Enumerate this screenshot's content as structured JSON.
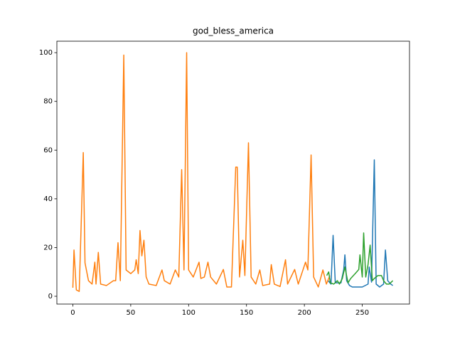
{
  "chart_data": {
    "type": "line",
    "title": "god_bless_america",
    "xlim": [
      -13.8,
      290.8
    ],
    "ylim": [
      -3.2,
      104.7
    ],
    "xticks": [
      0,
      50,
      100,
      150,
      200,
      250
    ],
    "yticks": [
      0,
      20,
      40,
      60,
      80,
      100
    ],
    "grid": false,
    "series": [
      {
        "color": "#1f77b4",
        "x": [
          220.5,
          223,
          224.8,
          226.7,
          229,
          231.6,
          234,
          235,
          236.5,
          239,
          241.4,
          245,
          250,
          255,
          256,
          258,
          260.4,
          262,
          265,
          268.4,
          270,
          272,
          274.6,
          276.4
        ],
        "values": [
          6.4,
          5,
          25,
          5.5,
          5.5,
          5.5,
          11,
          17,
          6.4,
          4.4,
          3.8,
          3.8,
          3.8,
          5,
          12,
          5.8,
          56,
          5,
          3.8,
          5,
          19,
          6.4,
          5,
          4.4
        ]
      },
      {
        "color": "#ff7f0e",
        "x": [
          0,
          1,
          3,
          5.5,
          9,
          10.5,
          13.5,
          16.6,
          19,
          20,
          22,
          24,
          29,
          35,
          37,
          39,
          41,
          44,
          46,
          50,
          53.5,
          54.7,
          56.5,
          58,
          59.6,
          61.4,
          63.3,
          65.7,
          72,
          77,
          79,
          84,
          88.5,
          91.5,
          94,
          96,
          98.3,
          100,
          104,
          109,
          110.6,
          113.6,
          116.7,
          119,
          124,
          130,
          133,
          137,
          140.7,
          142,
          144,
          146.8,
          148.6,
          151.7,
          154,
          158,
          161.5,
          164,
          170,
          171.4,
          174,
          179,
          183.7,
          185.5,
          191.6,
          194.7,
          201,
          203,
          205.8,
          208,
          212,
          216,
          219,
          222
        ],
        "values": [
          3.5,
          19,
          2.6,
          2,
          59,
          13.7,
          6.4,
          5,
          14,
          5,
          18,
          5,
          4.4,
          6.4,
          6.4,
          22,
          6.4,
          99,
          10.8,
          9.3,
          10.8,
          15,
          9.3,
          27,
          16.6,
          23,
          8,
          5,
          4.4,
          10.8,
          6.4,
          5,
          10.8,
          7.9,
          52,
          10.8,
          100,
          10.8,
          7.9,
          14,
          7.3,
          7.9,
          14,
          7.9,
          5,
          11,
          3.8,
          3.8,
          53,
          53,
          7.9,
          23,
          8.5,
          63,
          7.9,
          5,
          10.8,
          4.4,
          5,
          13,
          5,
          4,
          15,
          5,
          11,
          5,
          14,
          10.8,
          58,
          7.9,
          3.8,
          10.8,
          5,
          8.5
        ]
      },
      {
        "color": "#2ca02c",
        "x": [
          219.3,
          221,
          222.4,
          225.4,
          228.5,
          230.3,
          232.8,
          235,
          237.7,
          240,
          243.9,
          247,
          248,
          250,
          251.2,
          253,
          255,
          256.8,
          258.7,
          260.4,
          263.5,
          266.6,
          268.4,
          270.9,
          273.3,
          276.4
        ],
        "values": [
          8.5,
          10,
          5.5,
          5,
          6.4,
          5,
          7.3,
          12,
          5.5,
          7.3,
          9.3,
          11,
          17,
          7.9,
          26,
          7.9,
          13,
          21,
          6.4,
          7.3,
          8.5,
          8.5,
          6.4,
          5,
          5,
          6.4
        ]
      }
    ]
  }
}
